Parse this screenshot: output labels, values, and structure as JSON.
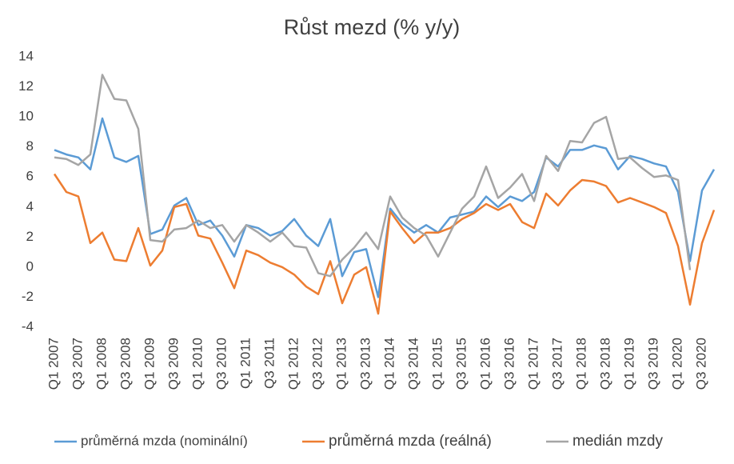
{
  "chart_data": {
    "type": "line",
    "title": "Růst mezd (% y/y)",
    "categories": [
      "Q1 2007",
      null,
      "Q3 2007",
      null,
      "Q1 2008",
      null,
      "Q3 2008",
      null,
      "Q1 2009",
      null,
      "Q3 2009",
      null,
      "Q1 2010",
      null,
      "Q3 2010",
      null,
      "Q1 2011",
      null,
      "Q3 2011",
      null,
      "Q1 2012",
      null,
      "Q3 2012",
      null,
      "Q1 2013",
      null,
      "Q3 2013",
      null,
      "Q1 2014",
      null,
      "Q3 2014",
      null,
      "Q1 2015",
      null,
      "Q3 2015",
      null,
      "Q1 2016",
      null,
      "Q3 2016",
      null,
      "Q1 2017",
      null,
      "Q3 2017",
      null,
      "Q1 2018",
      null,
      "Q3 2018",
      null,
      "Q1 2019",
      null,
      "Q3 2019",
      null,
      "Q1 2020",
      null,
      "Q3 2020",
      null
    ],
    "series": [
      {
        "name": "průměrná mzda (nominální)",
        "color": "#5b9bd5",
        "values": [
          7.8,
          7.5,
          7.3,
          6.5,
          9.9,
          7.3,
          7.0,
          7.4,
          2.2,
          2.5,
          4.1,
          4.6,
          2.8,
          3.1,
          2.1,
          0.7,
          2.8,
          2.6,
          2.1,
          2.4,
          3.2,
          2.1,
          1.4,
          3.2,
          -0.6,
          1.0,
          1.2,
          -2.0,
          3.9,
          2.9,
          2.3,
          2.8,
          2.3,
          3.3,
          3.5,
          3.7,
          4.7,
          4.0,
          4.7,
          4.4,
          5.0,
          7.3,
          6.7,
          7.8,
          7.8,
          8.1,
          7.9,
          6.5,
          7.4,
          7.2,
          6.9,
          6.7,
          5.0,
          0.4,
          5.1,
          6.5
        ]
      },
      {
        "name": "průměrná mzda (reálná)",
        "color": "#ed7d31",
        "values": [
          6.2,
          5.0,
          4.7,
          1.6,
          2.3,
          0.5,
          0.4,
          2.6,
          0.1,
          1.1,
          4.0,
          4.2,
          2.1,
          1.9,
          0.3,
          -1.4,
          1.1,
          0.8,
          0.3,
          0.0,
          -0.5,
          -1.3,
          -1.8,
          0.4,
          -2.4,
          -0.5,
          0.0,
          -3.1,
          3.7,
          2.6,
          1.6,
          2.3,
          2.3,
          2.6,
          3.2,
          3.6,
          4.2,
          3.8,
          4.2,
          3.0,
          2.6,
          4.9,
          4.1,
          5.1,
          5.8,
          5.7,
          5.4,
          4.3,
          4.6,
          4.3,
          4.0,
          3.6,
          1.4,
          -2.5,
          1.6,
          3.8
        ]
      },
      {
        "name": "medián mzdy",
        "color": "#a5a5a5",
        "values": [
          7.3,
          7.2,
          6.8,
          7.5,
          12.8,
          11.2,
          11.1,
          9.2,
          1.8,
          1.7,
          2.5,
          2.6,
          3.1,
          2.6,
          2.8,
          1.7,
          2.8,
          2.3,
          1.7,
          2.3,
          1.4,
          1.3,
          -0.4,
          -0.6,
          0.5,
          1.3,
          2.3,
          1.2,
          4.7,
          3.3,
          2.6,
          2.1,
          0.7,
          2.3,
          3.9,
          4.7,
          6.7,
          4.6,
          5.3,
          6.2,
          4.4,
          7.4,
          6.4,
          8.4,
          8.3,
          9.6,
          10.0,
          7.2,
          7.3,
          6.6,
          6.0,
          6.1,
          5.8,
          -0.2,
          null,
          null
        ]
      }
    ],
    "ylim": [
      -4,
      14
    ],
    "yticks": [
      -4,
      -2,
      0,
      2,
      4,
      6,
      8,
      10,
      12,
      14
    ],
    "grid": false,
    "legend": "bottom"
  }
}
